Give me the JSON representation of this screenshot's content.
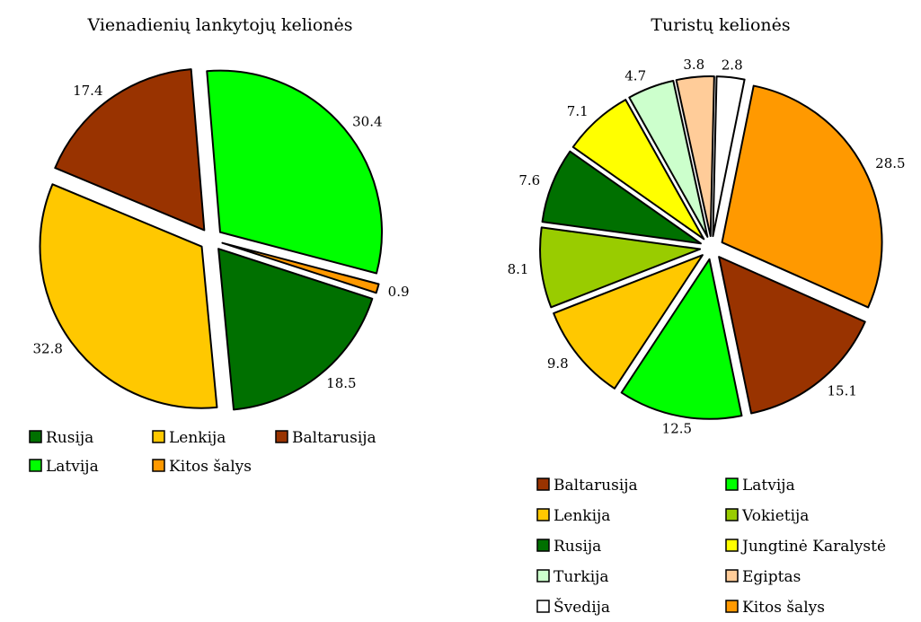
{
  "chart_data": [
    {
      "type": "pie",
      "title": "Vienadienių lankytojų kelionės",
      "slices": [
        {
          "label": "Rusija",
          "value": 18.5,
          "color": "#007000"
        },
        {
          "label": "Lenkija",
          "value": 32.8,
          "color": "#ffc800"
        },
        {
          "label": "Baltarusija",
          "value": 17.4,
          "color": "#993300"
        },
        {
          "label": "Latvija",
          "value": 30.4,
          "color": "#00ff00"
        },
        {
          "label": "Kitos šalys",
          "value": 0.9,
          "color": "#ff9900"
        }
      ],
      "legend": [
        "Rusija",
        "Lenkija",
        "Baltarusija",
        "Latvija",
        "Kitos šalys"
      ],
      "legend_placement": "bottom"
    },
    {
      "type": "pie",
      "title": "Turistų kelionės",
      "slices": [
        {
          "label": "Baltarusija",
          "value": 15.1,
          "color": "#993300"
        },
        {
          "label": "Latvija",
          "value": 12.5,
          "color": "#00ff00"
        },
        {
          "label": "Lenkija",
          "value": 9.8,
          "color": "#ffc800"
        },
        {
          "label": "Vokietija",
          "value": 8.1,
          "color": "#99cc00"
        },
        {
          "label": "Rusija",
          "value": 7.6,
          "color": "#007000"
        },
        {
          "label": "Jungtinė Karalystė",
          "value": 7.1,
          "color": "#ffff00"
        },
        {
          "label": "Turkija",
          "value": 4.7,
          "color": "#ccffcc"
        },
        {
          "label": "Egiptas",
          "value": 3.8,
          "color": "#ffcc99"
        },
        {
          "label": "Švedija",
          "value": 2.8,
          "color": "#ffffff"
        },
        {
          "label": "Kitos šalys",
          "value": 28.5,
          "color": "#ff9900"
        }
      ],
      "legend": [
        "Baltarusija",
        "Latvija",
        "Lenkija",
        "Vokietija",
        "Rusija",
        "Jungtinė Karalystė",
        "Turkija",
        "Egiptas",
        "Švedija",
        "Kitos šalys"
      ],
      "legend_placement": "bottom"
    }
  ]
}
